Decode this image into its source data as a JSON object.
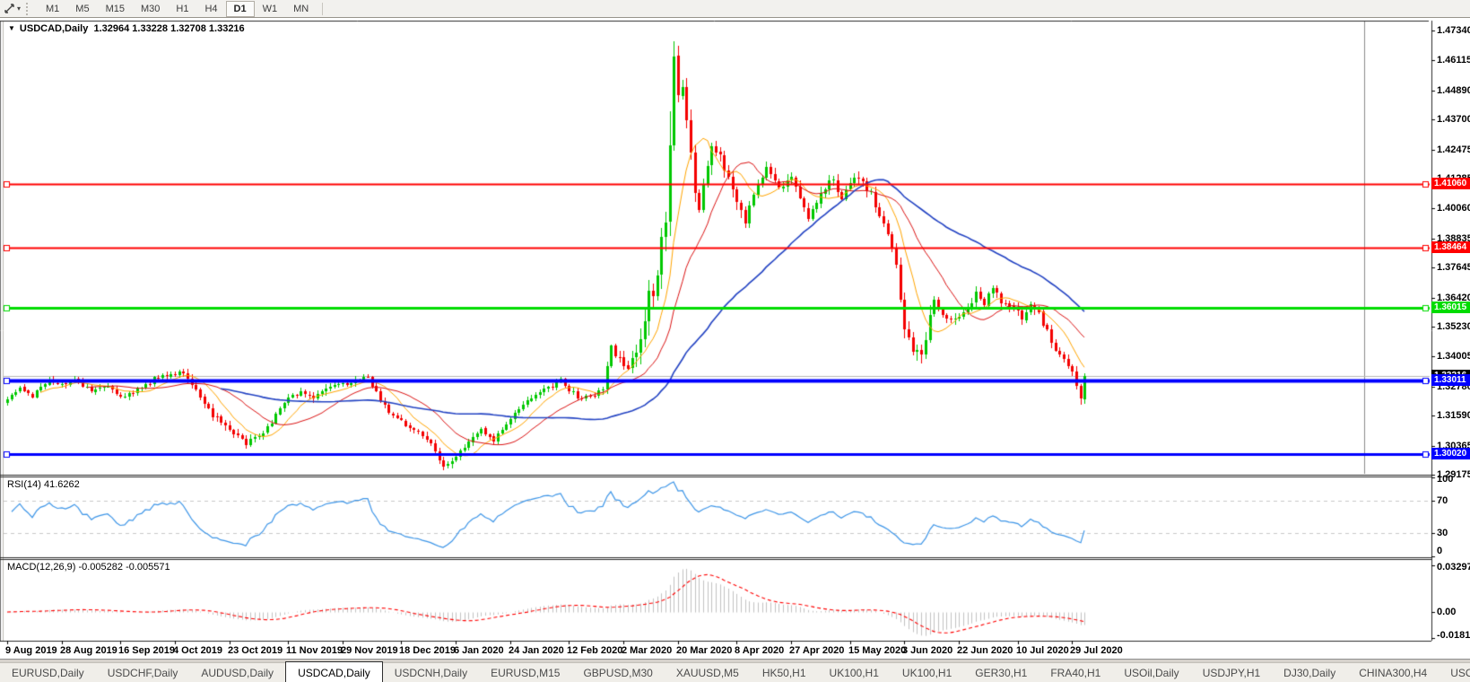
{
  "toolbar": {
    "timeframes": [
      {
        "label": "M1",
        "active": false
      },
      {
        "label": "M5",
        "active": false
      },
      {
        "label": "M15",
        "active": false
      },
      {
        "label": "M30",
        "active": false
      },
      {
        "label": "H1",
        "active": false
      },
      {
        "label": "H4",
        "active": false
      },
      {
        "label": "D1",
        "active": true
      },
      {
        "label": "W1",
        "active": false
      },
      {
        "label": "MN",
        "active": false
      }
    ],
    "dropdown_caret": "▾"
  },
  "chart": {
    "title_symbol": "USDCAD,Daily",
    "title_ohlc": "1.32964 1.33228 1.32708 1.33216",
    "title_dropdown": "▼"
  },
  "price_axis": {
    "ticks": [
      "1.47340",
      "1.46115",
      "1.44890",
      "1.43700",
      "1.42475",
      "1.41285",
      "1.40060",
      "1.38835",
      "1.37645",
      "1.36420",
      "1.35230",
      "1.34005",
      "1.32780",
      "1.31590",
      "1.30365",
      "1.29175"
    ]
  },
  "date_axis": {
    "labels": [
      "9 Aug 2019",
      "28 Aug 2019",
      "16 Sep 2019",
      "4 Oct 2019",
      "23 Oct 2019",
      "11 Nov 2019",
      "29 Nov 2019",
      "18 Dec 2019",
      "6 Jan 2020",
      "24 Jan 2020",
      "12 Feb 2020",
      "2 Mar 2020",
      "20 Mar 2020",
      "8 Apr 2020",
      "27 Apr 2020",
      "15 May 2020",
      "3 Jun 2020",
      "22 Jun 2020",
      "10 Jul 2020",
      "29 Jul 2020"
    ]
  },
  "hlines": [
    {
      "price": 1.4106,
      "label": "1.41060",
      "color": "#FF0000",
      "width": 2
    },
    {
      "price": 1.38464,
      "label": "1.38464",
      "color": "#FF0000",
      "width": 2
    },
    {
      "price": 1.36015,
      "label": "1.36015",
      "color": "#00DC00",
      "width": 3
    },
    {
      "price": 1.33011,
      "label": "1.33011",
      "color": "#0000FF",
      "width": 4
    },
    {
      "price": 1.3002,
      "label": "1.30020",
      "color": "#0000FF",
      "width": 3
    }
  ],
  "current_price": {
    "value": 1.33216,
    "label": "1.33216",
    "line_color": "#B8B8B8",
    "tag_bg": "#000000"
  },
  "indicators": {
    "rsi": {
      "label": "RSI(14) 41.6262",
      "period": 14,
      "current": 41.6262,
      "axis_labels": [
        "100",
        "70",
        "30",
        "0"
      ],
      "levels": [
        70,
        30
      ],
      "line_color": "#3E96E8",
      "level_color": "#C9C9C9"
    },
    "macd": {
      "label": "MACD(12,26,9) -0.005282 -0.005571",
      "fast": 12,
      "slow": 26,
      "signal_period": 9,
      "current_macd": -0.005282,
      "current_signal": -0.005571,
      "axis_labels": [
        "0.032972",
        "0.00",
        "-0.018154"
      ],
      "axis_max": 0.032972,
      "axis_min": -0.018154,
      "hist_color": "#C2C2C2",
      "signal_color": "#FF0000"
    }
  },
  "tabs": {
    "items": [
      {
        "label": "EURUSD,Daily",
        "active": false
      },
      {
        "label": "USDCHF,Daily",
        "active": false
      },
      {
        "label": "AUDUSD,Daily",
        "active": false
      },
      {
        "label": "USDCAD,Daily",
        "active": true
      },
      {
        "label": "USDCNH,Daily",
        "active": false
      },
      {
        "label": "EURUSD,M15",
        "active": false
      },
      {
        "label": "GBPUSD,M30",
        "active": false
      },
      {
        "label": "XAUUSD,M5",
        "active": false
      },
      {
        "label": "HK50,H1",
        "active": false
      },
      {
        "label": "UK100,H1",
        "active": false
      },
      {
        "label": "UK100,H1",
        "active": false
      },
      {
        "label": "GER30,H1",
        "active": false
      },
      {
        "label": "FRA40,H1",
        "active": false
      },
      {
        "label": "USOil,Daily",
        "active": false
      },
      {
        "label": "USDJPY,H1",
        "active": false
      },
      {
        "label": "DJ30,Daily",
        "active": false
      },
      {
        "label": "CHINA300,H4",
        "active": false
      },
      {
        "label": "USOil,H",
        "active": false
      }
    ],
    "scroll_left": "◂",
    "scroll_right": "▸"
  },
  "chart_data": {
    "type": "candlestick",
    "symbol": "USDCAD",
    "timeframe": "Daily",
    "ohlc_display": {
      "open": 1.32964,
      "high": 1.33228,
      "low": 1.32708,
      "close": 1.33216
    },
    "bar_count": 258,
    "y_axis": {
      "top": 1.4774,
      "bottom": 1.29175,
      "ticks": [
        1.4734,
        1.46115,
        1.4489,
        1.437,
        1.42475,
        1.41285,
        1.4006,
        1.38835,
        1.37645,
        1.3642,
        1.3523,
        1.34005,
        1.3278,
        1.3159,
        1.30365,
        1.29175
      ]
    },
    "x_axis": {
      "labels": [
        "9 Aug 2019",
        "28 Aug 2019",
        "16 Sep 2019",
        "4 Oct 2019",
        "23 Oct 2019",
        "11 Nov 2019",
        "29 Nov 2019",
        "18 Dec 2019",
        "6 Jan 2020",
        "24 Jan 2020",
        "12 Feb 2020",
        "2 Mar 2020",
        "20 Mar 2020",
        "8 Apr 2020",
        "27 Apr 2020",
        "15 May 2020",
        "3 Jun 2020",
        "22 Jun 2020",
        "10 Jul 2020",
        "29 Jul 2020"
      ],
      "label_step_bars": 13.368
    },
    "bull_color": "#00C800",
    "bear_color": "#F40000",
    "anchors": [
      [
        0,
        1.3225
      ],
      [
        3,
        1.3268
      ],
      [
        6,
        1.3242
      ],
      [
        10,
        1.3303
      ],
      [
        13,
        1.3287
      ],
      [
        16,
        1.3308
      ],
      [
        20,
        1.3256
      ],
      [
        24,
        1.3282
      ],
      [
        27,
        1.3237
      ],
      [
        30,
        1.3252
      ],
      [
        33,
        1.3286
      ],
      [
        36,
        1.3318
      ],
      [
        40,
        1.333
      ],
      [
        42,
        1.3342
      ],
      [
        45,
        1.3256
      ],
      [
        48,
        1.3182
      ],
      [
        51,
        1.3122
      ],
      [
        54,
        1.3086
      ],
      [
        57,
        1.3048
      ],
      [
        60,
        1.3076
      ],
      [
        63,
        1.3136
      ],
      [
        67,
        1.323
      ],
      [
        70,
        1.3256
      ],
      [
        73,
        1.3232
      ],
      [
        76,
        1.327
      ],
      [
        80,
        1.3286
      ],
      [
        83,
        1.3302
      ],
      [
        86,
        1.3316
      ],
      [
        88,
        1.3252
      ],
      [
        91,
        1.3172
      ],
      [
        94,
        1.3136
      ],
      [
        97,
        1.3102
      ],
      [
        100,
        1.3062
      ],
      [
        104,
        1.2958
      ],
      [
        107,
        1.2996
      ],
      [
        110,
        1.3052
      ],
      [
        113,
        1.3106
      ],
      [
        116,
        1.3062
      ],
      [
        120,
        1.3142
      ],
      [
        123,
        1.3206
      ],
      [
        126,
        1.3242
      ],
      [
        129,
        1.3272
      ],
      [
        132,
        1.3302
      ],
      [
        134,
        1.3262
      ],
      [
        137,
        1.3226
      ],
      [
        140,
        1.3246
      ],
      [
        142,
        1.3278
      ],
      [
        144,
        1.3432
      ],
      [
        146,
        1.3396
      ],
      [
        148,
        1.3362
      ],
      [
        150,
        1.3422
      ],
      [
        152,
        1.356
      ],
      [
        153,
        1.3662
      ],
      [
        154,
        1.3622
      ],
      [
        155,
        1.3732
      ],
      [
        156,
        1.3902
      ],
      [
        157,
        1.3982
      ],
      [
        158,
        1.4282
      ],
      [
        159,
        1.4642
      ],
      [
        160,
        1.4482
      ],
      [
        161,
        1.4502
      ],
      [
        162,
        1.4362
      ],
      [
        163,
        1.4212
      ],
      [
        164,
        1.4062
      ],
      [
        165,
        1.3992
      ],
      [
        166,
        1.4092
      ],
      [
        167,
        1.4202
      ],
      [
        168,
        1.4262
      ],
      [
        170,
        1.4232
      ],
      [
        172,
        1.4122
      ],
      [
        174,
        1.4036
      ],
      [
        176,
        1.3956
      ],
      [
        178,
        1.4052
      ],
      [
        181,
        1.4172
      ],
      [
        184,
        1.4092
      ],
      [
        187,
        1.4136
      ],
      [
        189,
        1.4052
      ],
      [
        191,
        1.3952
      ],
      [
        194,
        1.4072
      ],
      [
        197,
        1.4132
      ],
      [
        199,
        1.4032
      ],
      [
        201,
        1.4106
      ],
      [
        203,
        1.4142
      ],
      [
        206,
        1.4062
      ],
      [
        208,
        1.3972
      ],
      [
        210,
        1.3892
      ],
      [
        212,
        1.3772
      ],
      [
        214,
        1.3506
      ],
      [
        216,
        1.3422
      ],
      [
        218,
        1.3392
      ],
      [
        220,
        1.3562
      ],
      [
        221,
        1.3622
      ],
      [
        223,
        1.3582
      ],
      [
        225,
        1.3552
      ],
      [
        227,
        1.3556
      ],
      [
        229,
        1.3602
      ],
      [
        231,
        1.3652
      ],
      [
        233,
        1.3622
      ],
      [
        235,
        1.3682
      ],
      [
        237,
        1.3622
      ],
      [
        240,
        1.3592
      ],
      [
        242,
        1.3562
      ],
      [
        244,
        1.3612
      ],
      [
        246,
        1.3572
      ],
      [
        248,
        1.3502
      ],
      [
        250,
        1.3422
      ],
      [
        252,
        1.3392
      ],
      [
        254,
        1.3346
      ],
      [
        255,
        1.3292
      ],
      [
        256,
        1.3242
      ],
      [
        257,
        1.33216
      ]
    ],
    "vol_zones": [
      [
        0,
        0.0016
      ],
      [
        38,
        0.0022
      ],
      [
        62,
        0.0016
      ],
      [
        100,
        0.002
      ],
      [
        108,
        0.0016
      ],
      [
        142,
        0.003
      ],
      [
        150,
        0.006
      ],
      [
        161,
        0.005
      ],
      [
        169,
        0.0034
      ],
      [
        176,
        0.0026
      ],
      [
        206,
        0.003
      ],
      [
        213,
        0.004
      ],
      [
        221,
        0.0024
      ],
      [
        246,
        0.002
      ],
      [
        255,
        0.0028
      ]
    ],
    "forced": [
      {
        "i": 104,
        "low": 1.2952
      },
      {
        "i": 158,
        "high": 1.4405
      },
      {
        "i": 159,
        "high": 1.469
      },
      {
        "i": 256,
        "low": 1.3227
      }
    ],
    "seed": 42,
    "moving_averages": [
      {
        "period": 9,
        "color": "#FFA500",
        "width": 1
      },
      {
        "period": 20,
        "color": "#DC1414",
        "width": 1
      },
      {
        "period": 52,
        "color": "#2343C3",
        "width": 1.6
      }
    ],
    "horizontal_lines": [
      1.4106,
      1.38464,
      1.36015,
      1.33011,
      1.3002
    ],
    "rsi": {
      "period": 14,
      "current": 41.6262,
      "range": [
        0,
        100
      ],
      "levels": [
        70,
        30
      ]
    },
    "macd": {
      "fast": 12,
      "slow": 26,
      "signal": 9,
      "current": [
        -0.005282,
        -0.005571
      ],
      "range": [
        -0.018154,
        0.032972
      ]
    }
  }
}
